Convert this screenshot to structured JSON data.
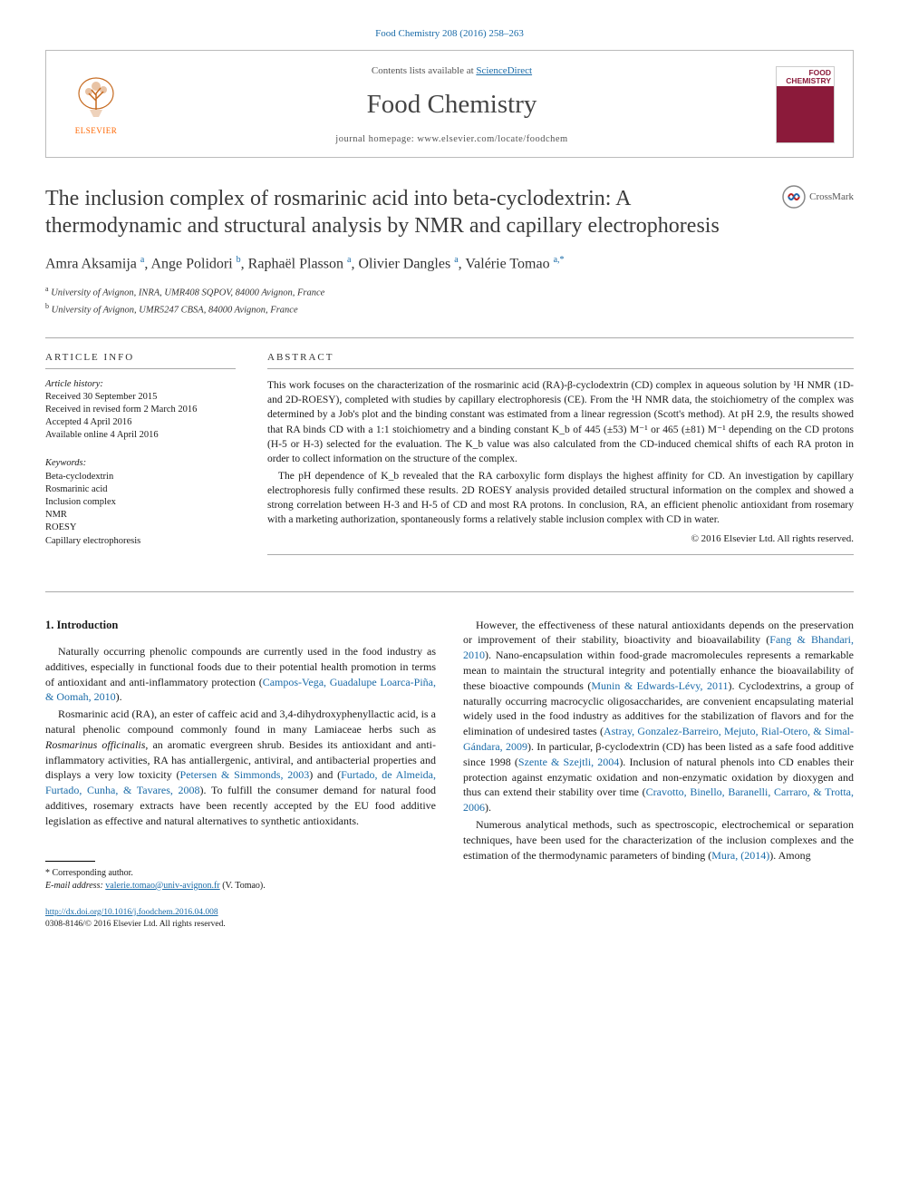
{
  "citation": "Food Chemistry 208 (2016) 258–263",
  "masthead": {
    "contents_prefix": "Contents lists available at ",
    "contents_link": "ScienceDirect",
    "journal_name": "Food Chemistry",
    "homepage_prefix": "journal homepage: ",
    "homepage_url": "www.elsevier.com/locate/foodchem",
    "publisher_logo_text": "ELSEVIER",
    "publisher_logo_color": "#ff6600",
    "cover_title": "FOOD CHEMISTRY",
    "cover_bg": "#8b1a3a"
  },
  "title": "The inclusion complex of rosmarinic acid into beta-cyclodextrin: A thermodynamic and structural analysis by NMR and capillary electrophoresis",
  "crossmark_label": "CrossMark",
  "authors_html": "Amra Aksamija <sup>a</sup>, Ange Polidori <sup>b</sup>, Raphaël Plasson <sup>a</sup>, Olivier Dangles <sup>a</sup>, Valérie Tomao <sup>a,*</sup>",
  "affiliations": [
    {
      "sup": "a",
      "text": "University of Avignon, INRA, UMR408 SQPOV, 84000 Avignon, France"
    },
    {
      "sup": "b",
      "text": "University of Avignon, UMR5247 CBSA, 84000 Avignon, France"
    }
  ],
  "info": {
    "head": "ARTICLE INFO",
    "history_label": "Article history:",
    "history": [
      "Received 30 September 2015",
      "Received in revised form 2 March 2016",
      "Accepted 4 April 2016",
      "Available online 4 April 2016"
    ],
    "keywords_label": "Keywords:",
    "keywords": [
      "Beta-cyclodextrin",
      "Rosmarinic acid",
      "Inclusion complex",
      "NMR",
      "ROESY",
      "Capillary electrophoresis"
    ]
  },
  "abstract": {
    "head": "ABSTRACT",
    "p1": "This work focuses on the characterization of the rosmarinic acid (RA)-β-cyclodextrin (CD) complex in aqueous solution by ¹H NMR (1D- and 2D-ROESY), completed with studies by capillary electrophoresis (CE). From the ¹H NMR data, the stoichiometry of the complex was determined by a Job's plot and the binding constant was estimated from a linear regression (Scott's method). At pH 2.9, the results showed that RA binds CD with a 1:1 stoichiometry and a binding constant K_b of 445 (±53) M⁻¹ or 465 (±81) M⁻¹ depending on the CD protons (H-5 or H-3) selected for the evaluation. The K_b value was also calculated from the CD-induced chemical shifts of each RA proton in order to collect information on the structure of the complex.",
    "p2": "The pH dependence of K_b revealed that the RA carboxylic form displays the highest affinity for CD. An investigation by capillary electrophoresis fully confirmed these results. 2D ROESY analysis provided detailed structural information on the complex and showed a strong correlation between H-3 and H-5 of CD and most RA protons. In conclusion, RA, an efficient phenolic antioxidant from rosemary with a marketing authorization, spontaneously forms a relatively stable inclusion complex with CD in water.",
    "copyright": "© 2016 Elsevier Ltd. All rights reserved."
  },
  "body": {
    "section_num": "1.",
    "section_title": "Introduction",
    "col1": {
      "p1_a": "Naturally occurring phenolic compounds are currently used in the food industry as additives, especially in functional foods due to their potential health promotion in terms of antioxidant and anti-inflammatory protection (",
      "p1_ref": "Campos-Vega, Guadalupe Loarca-Piña, & Oomah, 2010",
      "p1_b": ").",
      "p2_a": "Rosmarinic acid (RA), an ester of caffeic acid and 3,4-dihydroxyphenyllactic acid, is a natural phenolic compound commonly found in many Lamiaceae herbs such as ",
      "p2_ital": "Rosmarinus officinalis",
      "p2_b": ", an aromatic evergreen shrub. Besides its antioxidant and anti-inflammatory activities, RA has antiallergenic, antiviral, and antibacterial properties and displays a very low toxicity (",
      "p2_ref1": "Petersen & Simmonds, 2003",
      "p2_mid": ") and (",
      "p2_ref2": "Furtado, de Almeida, Furtado, Cunha, & Tavares, 2008",
      "p2_c": "). To fulfill the consumer demand for natural food additives, rosemary extracts have been recently accepted by the EU food additive legislation as effective and natural alternatives to synthetic antioxidants."
    },
    "col2": {
      "p1_a": "However, the effectiveness of these natural antioxidants depends on the preservation or improvement of their stability, bioactivity and bioavailability (",
      "p1_ref1": "Fang & Bhandari, 2010",
      "p1_b": "). Nano-encapsulation within food-grade macromolecules represents a remarkable mean to maintain the structural integrity and potentially enhance the bioavailability of these bioactive compounds (",
      "p1_ref2": "Munin & Edwards-Lévy, 2011",
      "p1_c": "). Cyclodextrins, a group of naturally occurring macrocyclic oligosaccharides, are convenient encapsulating material widely used in the food industry as additives for the stabilization of flavors and for the elimination of undesired tastes (",
      "p1_ref3": "Astray, Gonzalez-Barreiro, Mejuto, Rial-Otero, & Simal-Gándara, 2009",
      "p1_d": "). In particular, β-cyclodextrin (CD) has been listed as a safe food additive since 1998 (",
      "p1_ref4": "Szente & Szejtli, 2004",
      "p1_e": "). Inclusion of natural phenols into CD enables their protection against enzymatic oxidation and non-enzymatic oxidation by dioxygen and thus can extend their stability over time (",
      "p1_ref5": "Cravotto, Binello, Baranelli, Carraro, & Trotta, 2006",
      "p1_f": ").",
      "p2_a": "Numerous analytical methods, such as spectroscopic, electrochemical or separation techniques, have been used for the characterization of the inclusion complexes and the estimation of the thermodynamic parameters of binding (",
      "p2_ref": "Mura, (2014)",
      "p2_b": "). Among"
    }
  },
  "footnotes": {
    "corr": "* Corresponding author.",
    "email_label": "E-mail address:",
    "email": "valerie.tomao@univ-avignon.fr",
    "email_who": "(V. Tomao)."
  },
  "footer": {
    "doi": "http://dx.doi.org/10.1016/j.foodchem.2016.04.008",
    "issn_line": "0308-8146/© 2016 Elsevier Ltd. All rights reserved."
  },
  "colors": {
    "link": "#1a6ba8",
    "text": "#1a1a1a",
    "elsevier": "#ff6600"
  }
}
